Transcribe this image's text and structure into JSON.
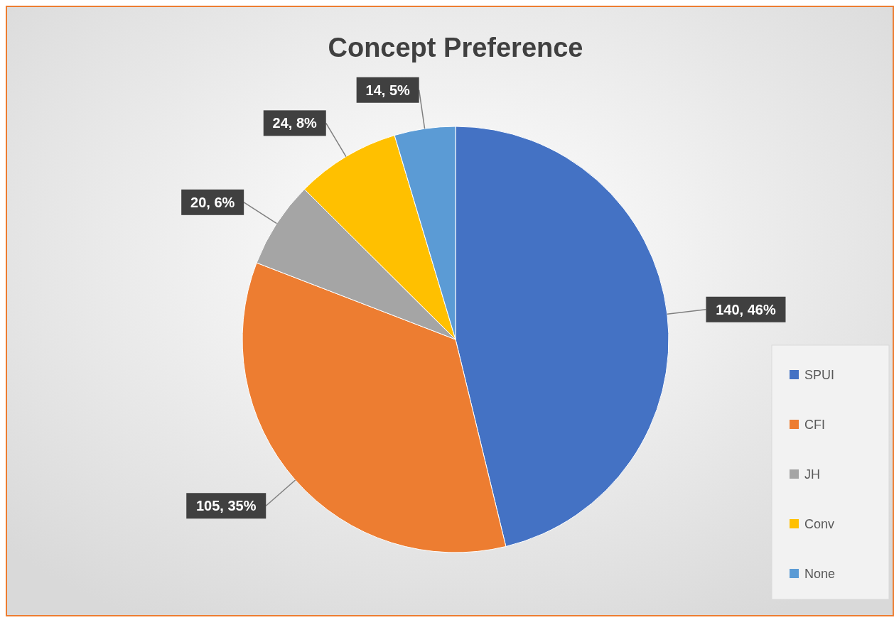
{
  "chart_data": {
    "type": "pie",
    "title": "Concept Preference",
    "categories": [
      "SPUI",
      "CFI",
      "JH",
      "Conv",
      "None"
    ],
    "values": [
      140,
      105,
      20,
      24,
      14
    ],
    "colors": [
      "#4472c4",
      "#ed7d31",
      "#a5a5a5",
      "#ffc000",
      "#5b9bd5"
    ],
    "value_labels": [
      "140, 46%",
      "105, 35%",
      "20, 6%",
      "24, 8%",
      "14, 5%"
    ],
    "legend": "right"
  }
}
